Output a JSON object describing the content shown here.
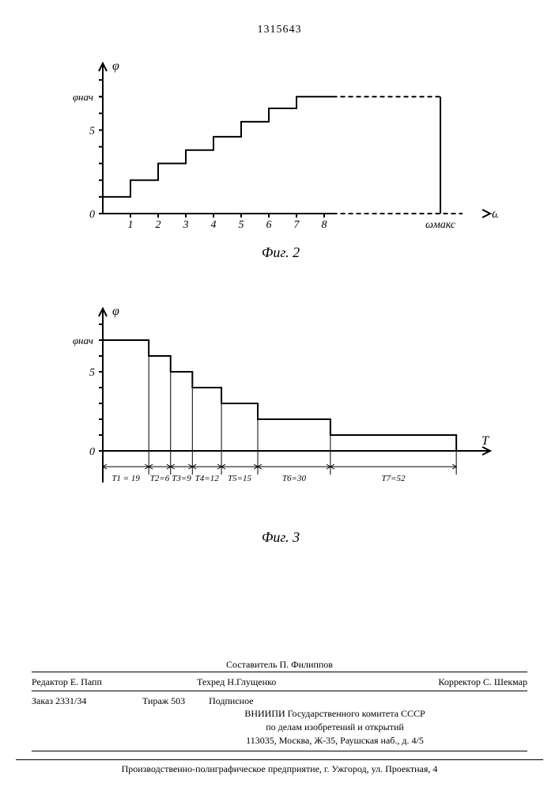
{
  "page_number": "1315643",
  "fig2": {
    "caption": "Фиг. 2",
    "y_label": "φ",
    "x_label": "ω",
    "y_mark_label": "φнач",
    "x_far_label": "ωмакс",
    "y_ticks": [
      0,
      1,
      2,
      3,
      4,
      5,
      6,
      7,
      8
    ],
    "y_tick_labels": {
      "0": "0",
      "5": "5"
    },
    "x_ticks": [
      1,
      2,
      3,
      4,
      5,
      6,
      7,
      8
    ],
    "step_values": [
      1,
      2,
      3,
      3.8,
      4.6,
      5.5,
      6.3,
      7
    ],
    "plateau_y": 7,
    "colors": {
      "stroke": "#000000",
      "bg": "#ffffff"
    },
    "line_width": 2,
    "axis_font_size": 14,
    "x_range": [
      0,
      14
    ],
    "y_range": [
      0,
      9
    ]
  },
  "fig3": {
    "caption": "Фиг. 3",
    "y_label": "φ",
    "x_label": "T",
    "y_mark_label": "φнач",
    "y_ticks": [
      0,
      1,
      2,
      3,
      4,
      5,
      6,
      7,
      8
    ],
    "y_tick_labels": {
      "0": "0",
      "5": "5"
    },
    "bars": [
      {
        "label": "T1 = 19",
        "x0": 0,
        "x1": 19,
        "y": 7
      },
      {
        "label": "T2=6",
        "x0": 19,
        "x1": 28,
        "y": 6
      },
      {
        "label": "T3=9",
        "x0": 28,
        "x1": 37,
        "y": 5
      },
      {
        "label": "T4=12",
        "x0": 37,
        "x1": 49,
        "y": 4
      },
      {
        "label": "T5=15",
        "x0": 49,
        "x1": 64,
        "y": 3
      },
      {
        "label": "T6=30",
        "x0": 64,
        "x1": 94,
        "y": 2
      },
      {
        "label": "T7=52",
        "x0": 94,
        "x1": 146,
        "y": 1
      }
    ],
    "colors": {
      "stroke": "#000000",
      "bg": "#ffffff"
    },
    "line_width": 2,
    "axis_font_size": 14,
    "x_range": [
      0,
      160
    ],
    "y_range": [
      -2,
      9
    ]
  },
  "credits": {
    "compiler": "Составитель П. Филиппов",
    "editor": "Редактор Е. Папп",
    "techred": "Техред Н.Глущенко",
    "corrector": "Корректор С. Шекмар",
    "order": "Заказ 2331/34",
    "tirage": "Тираж 503",
    "subscription": "Подписное",
    "org1": "ВНИИПИ Государственного комитета СССР",
    "org2": "по делам изобретений и открытий",
    "address": "113035, Москва, Ж-35, Раушская наб., д. 4/5"
  },
  "footer": "Производственно-полиграфическое предприятие, г. Ужгород, ул. Проектная, 4"
}
